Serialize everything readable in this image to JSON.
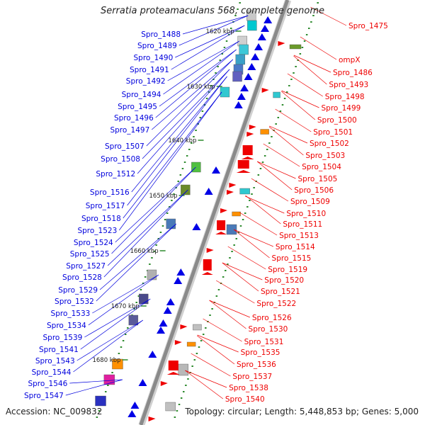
{
  "title": "Serratia proteamaculans 568, complete genome",
  "accession": "Accession: NC_009832",
  "summary": "Topology: circular; Length: 5,448,853 bp; Genes: 5,000",
  "colors": {
    "backbone": "#8a8a8a",
    "left_labels": "#0000dd",
    "right_labels": "#ee0000",
    "tick_marks": "#2e8b2e"
  },
  "scale_ticks": [
    "1620 kbp",
    "1630 kbp",
    "1640 kbp",
    "1650 kbp",
    "1660 kbp",
    "1670 kbp",
    "1680 kbp"
  ],
  "left_genes": [
    "Spro_1488",
    "Spro_1489",
    "Spro_1490",
    "Spro_1491",
    "Spro_1492",
    "Spro_1494",
    "Spro_1495",
    "Spro_1496",
    "Spro_1497",
    "Spro_1507",
    "Spro_1508",
    "Spro_1512",
    "Spro_1516",
    "Spro_1517",
    "Spro_1518",
    "Spro_1523",
    "Spro_1524",
    "Spro_1525",
    "Spro_1527",
    "Spro_1528",
    "Spro_1529",
    "Spro_1532",
    "Spro_1533",
    "Spro_1534",
    "Spro_1539",
    "Spro_1541",
    "Spro_1543",
    "Spro_1544",
    "Spro_1546",
    "Spro_1547"
  ],
  "right_genes": [
    "Spro_1475",
    "ompX",
    "Spro_1486",
    "Spro_1493",
    "Spro_1498",
    "Spro_1499",
    "Spro_1500",
    "Spro_1501",
    "Spro_1502",
    "Spro_1503",
    "Spro_1504",
    "Spro_1505",
    "Spro_1506",
    "Spro_1509",
    "Spro_1510",
    "Spro_1511",
    "Spro_1513",
    "Spro_1514",
    "Spro_1515",
    "Spro_1519",
    "Spro_1520",
    "Spro_1521",
    "Spro_1522",
    "Spro_1526",
    "Spro_1530",
    "Spro_1531",
    "Spro_1535",
    "Spro_1536",
    "Spro_1537",
    "Spro_1538",
    "Spro_1540"
  ]
}
